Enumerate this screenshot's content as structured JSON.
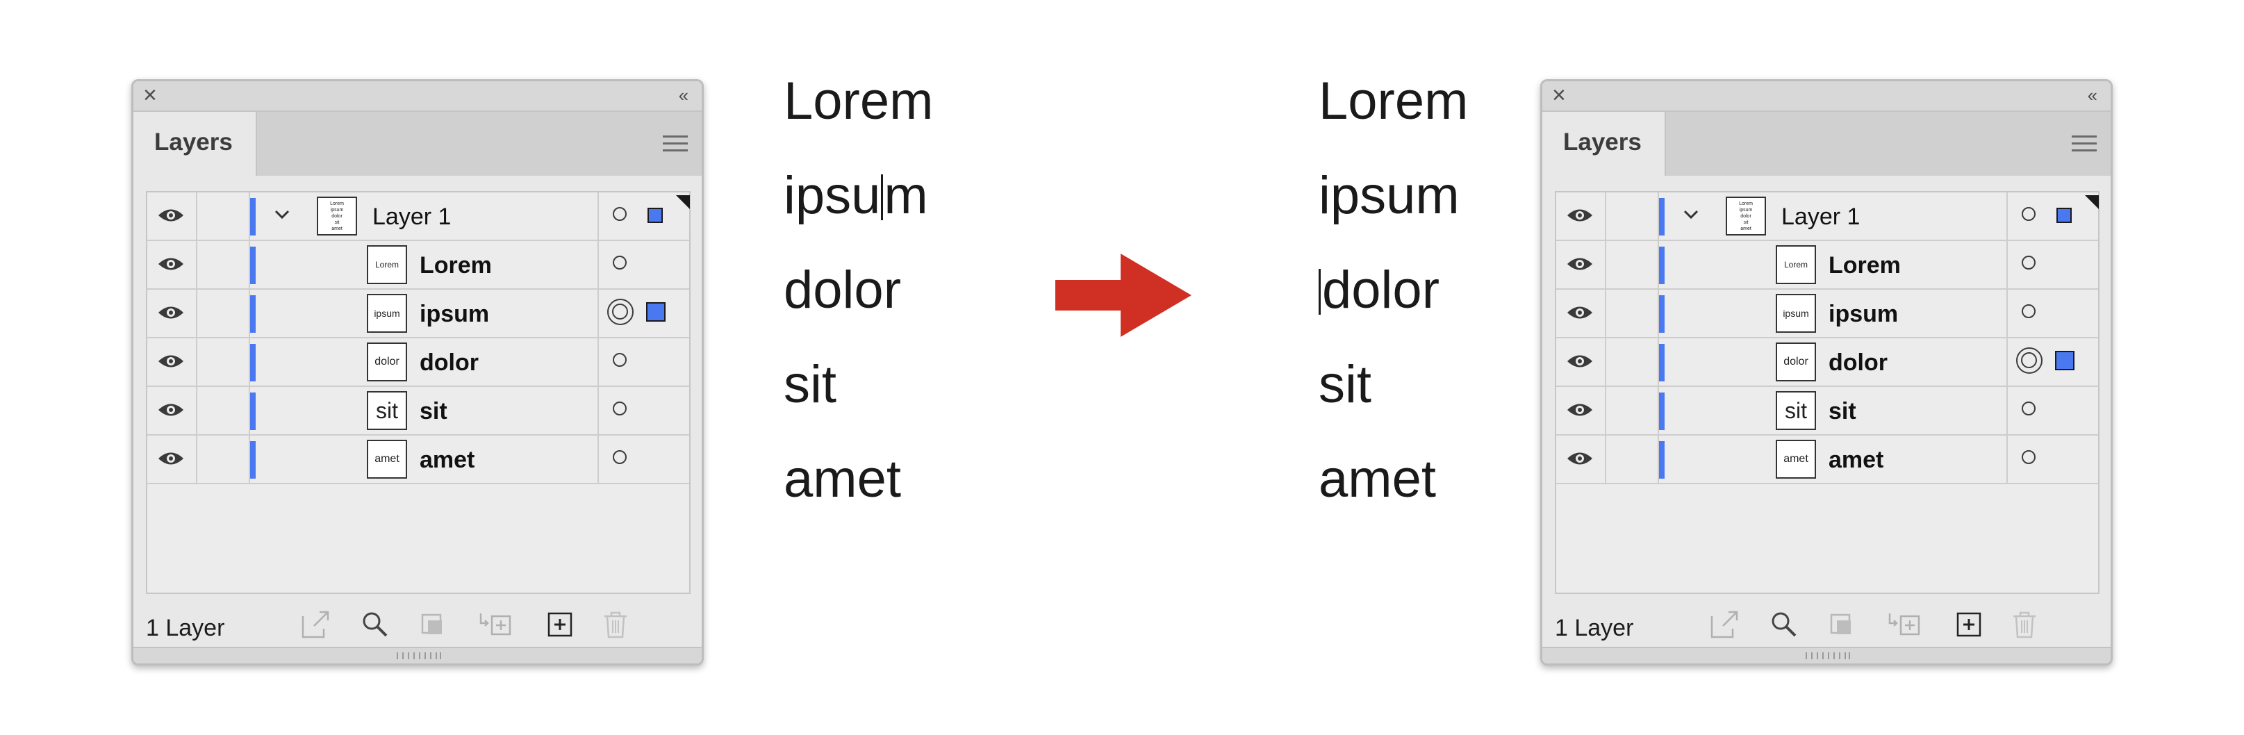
{
  "arrow_color": "#d03024",
  "accent_color": "#4a78f0",
  "panels": [
    {
      "title_tab": "Layers",
      "layer_count": "1 Layer",
      "top_layer": {
        "name": "Layer 1",
        "thumb_lines": [
          "Lorem",
          "ipsum",
          "dolor",
          "sit",
          "amet"
        ]
      },
      "rows": [
        {
          "name": "Lorem",
          "thumb": "Lorem",
          "selected": false
        },
        {
          "name": "ipsum",
          "thumb": "ipsum",
          "selected": true
        },
        {
          "name": "dolor",
          "thumb": "dolor",
          "selected": false
        },
        {
          "name": "sit",
          "thumb": "sit",
          "selected": false
        },
        {
          "name": "amet",
          "thumb": "amet",
          "selected": false
        }
      ]
    },
    {
      "title_tab": "Layers",
      "layer_count": "1 Layer",
      "top_layer": {
        "name": "Layer 1",
        "thumb_lines": [
          "Lorem",
          "ipsum",
          "dolor",
          "sit",
          "amet"
        ]
      },
      "rows": [
        {
          "name": "Lorem",
          "thumb": "Lorem",
          "selected": false
        },
        {
          "name": "ipsum",
          "thumb": "ipsum",
          "selected": false
        },
        {
          "name": "dolor",
          "thumb": "dolor",
          "selected": true
        },
        {
          "name": "sit",
          "thumb": "sit",
          "selected": false
        },
        {
          "name": "amet",
          "thumb": "amet",
          "selected": false
        }
      ]
    }
  ],
  "canvas_left": {
    "words": [
      "Lorem",
      "ipsum",
      "dolor",
      "sit",
      "amet"
    ],
    "ipsum_before_caret": "ipsu",
    "ipsum_after_caret": "m"
  },
  "canvas_right": {
    "words": [
      "Lorem",
      "ipsum",
      "dolor",
      "sit",
      "amet"
    ]
  },
  "footer_icons": [
    "export-icon",
    "search-icon",
    "clip-mask-icon",
    "collect-layer-icon",
    "new-layer-icon",
    "trash-icon"
  ]
}
